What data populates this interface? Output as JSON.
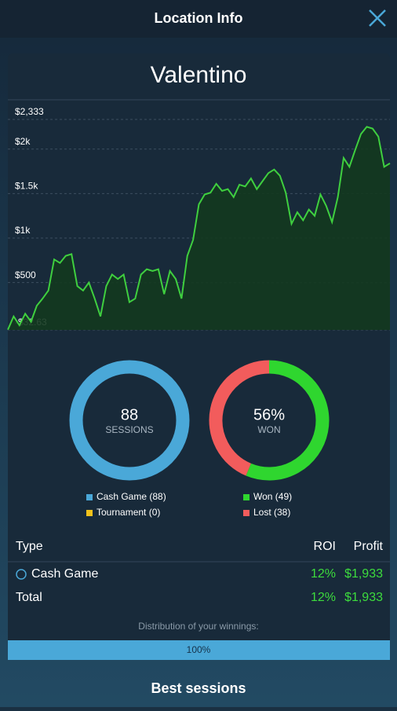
{
  "header": {
    "title": "Location Info"
  },
  "location": {
    "name": "Valentino"
  },
  "chart_data": [
    {
      "type": "area",
      "color": "#3fcf3f",
      "fill": "#13391f",
      "grid": true,
      "ylim": [
        -32.63,
        2333
      ],
      "yticks": [
        {
          "value": -32.63,
          "label": "-$32.63"
        },
        {
          "value": 500,
          "label": "$500"
        },
        {
          "value": 1000,
          "label": "$1k"
        },
        {
          "value": 1500,
          "label": "$1.5k"
        },
        {
          "value": 2000,
          "label": "$2k"
        },
        {
          "value": 2333,
          "label": "$2,333"
        }
      ],
      "values": [
        -30,
        120,
        20,
        150,
        60,
        240,
        320,
        410,
        760,
        720,
        800,
        820,
        460,
        410,
        500,
        320,
        120,
        460,
        590,
        540,
        590,
        280,
        320,
        590,
        650,
        630,
        650,
        370,
        630,
        540,
        320,
        800,
        980,
        1380,
        1490,
        1510,
        1610,
        1530,
        1550,
        1460,
        1600,
        1580,
        1670,
        1550,
        1640,
        1730,
        1770,
        1700,
        1510,
        1160,
        1290,
        1200,
        1320,
        1250,
        1490,
        1360,
        1180,
        1460,
        1900,
        1800,
        1990,
        2170,
        2250,
        2230,
        2140,
        1800,
        1840
      ]
    },
    {
      "type": "pie",
      "center_value": "88",
      "center_label": "SESSIONS",
      "categories": [
        "Cash Game (88)",
        "Tournament (0)"
      ],
      "values": [
        88,
        0
      ],
      "colors": [
        "#4aa8d8",
        "#f2c21b"
      ]
    },
    {
      "type": "pie",
      "center_value": "56%",
      "center_label": "WON",
      "categories": [
        "Won (49)",
        "Lost (38)"
      ],
      "values": [
        49,
        38
      ],
      "colors": [
        "#2fd62f",
        "#f25c5c"
      ]
    }
  ],
  "table": {
    "headers": [
      "Type",
      "ROI",
      "Profit"
    ],
    "rows": [
      [
        "Cash Game",
        "12%",
        "$1,933"
      ]
    ],
    "total": [
      "Total",
      "12%",
      "$1,933"
    ]
  },
  "distribution": {
    "label": "Distribution of your winnings:",
    "bar": "100%"
  },
  "footer": {
    "title": "Best sessions"
  }
}
